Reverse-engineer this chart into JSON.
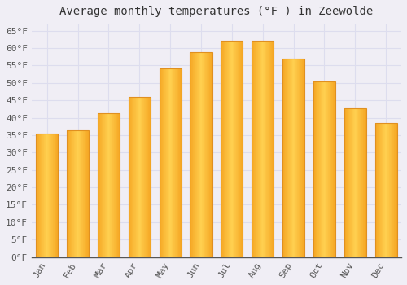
{
  "title": "Average monthly temperatures (°F ) in Zeewolde",
  "months": [
    "Jan",
    "Feb",
    "Mar",
    "Apr",
    "May",
    "Jun",
    "Jul",
    "Aug",
    "Sep",
    "Oct",
    "Nov",
    "Dec"
  ],
  "values": [
    35.5,
    36.3,
    41.4,
    46.0,
    54.2,
    58.8,
    62.2,
    62.1,
    57.0,
    50.4,
    42.8,
    38.5
  ],
  "bar_color_left": "#F5A623",
  "bar_color_center": "#FFD050",
  "bar_color_right": "#F5A623",
  "background_color": "#F0EEF5",
  "plot_bg_color": "#F0EEF5",
  "grid_color": "#DDDDEE",
  "axis_color": "#333333",
  "ylim": [
    0,
    67
  ],
  "ytick_step": 5,
  "title_fontsize": 10,
  "tick_fontsize": 8,
  "font_family": "monospace"
}
